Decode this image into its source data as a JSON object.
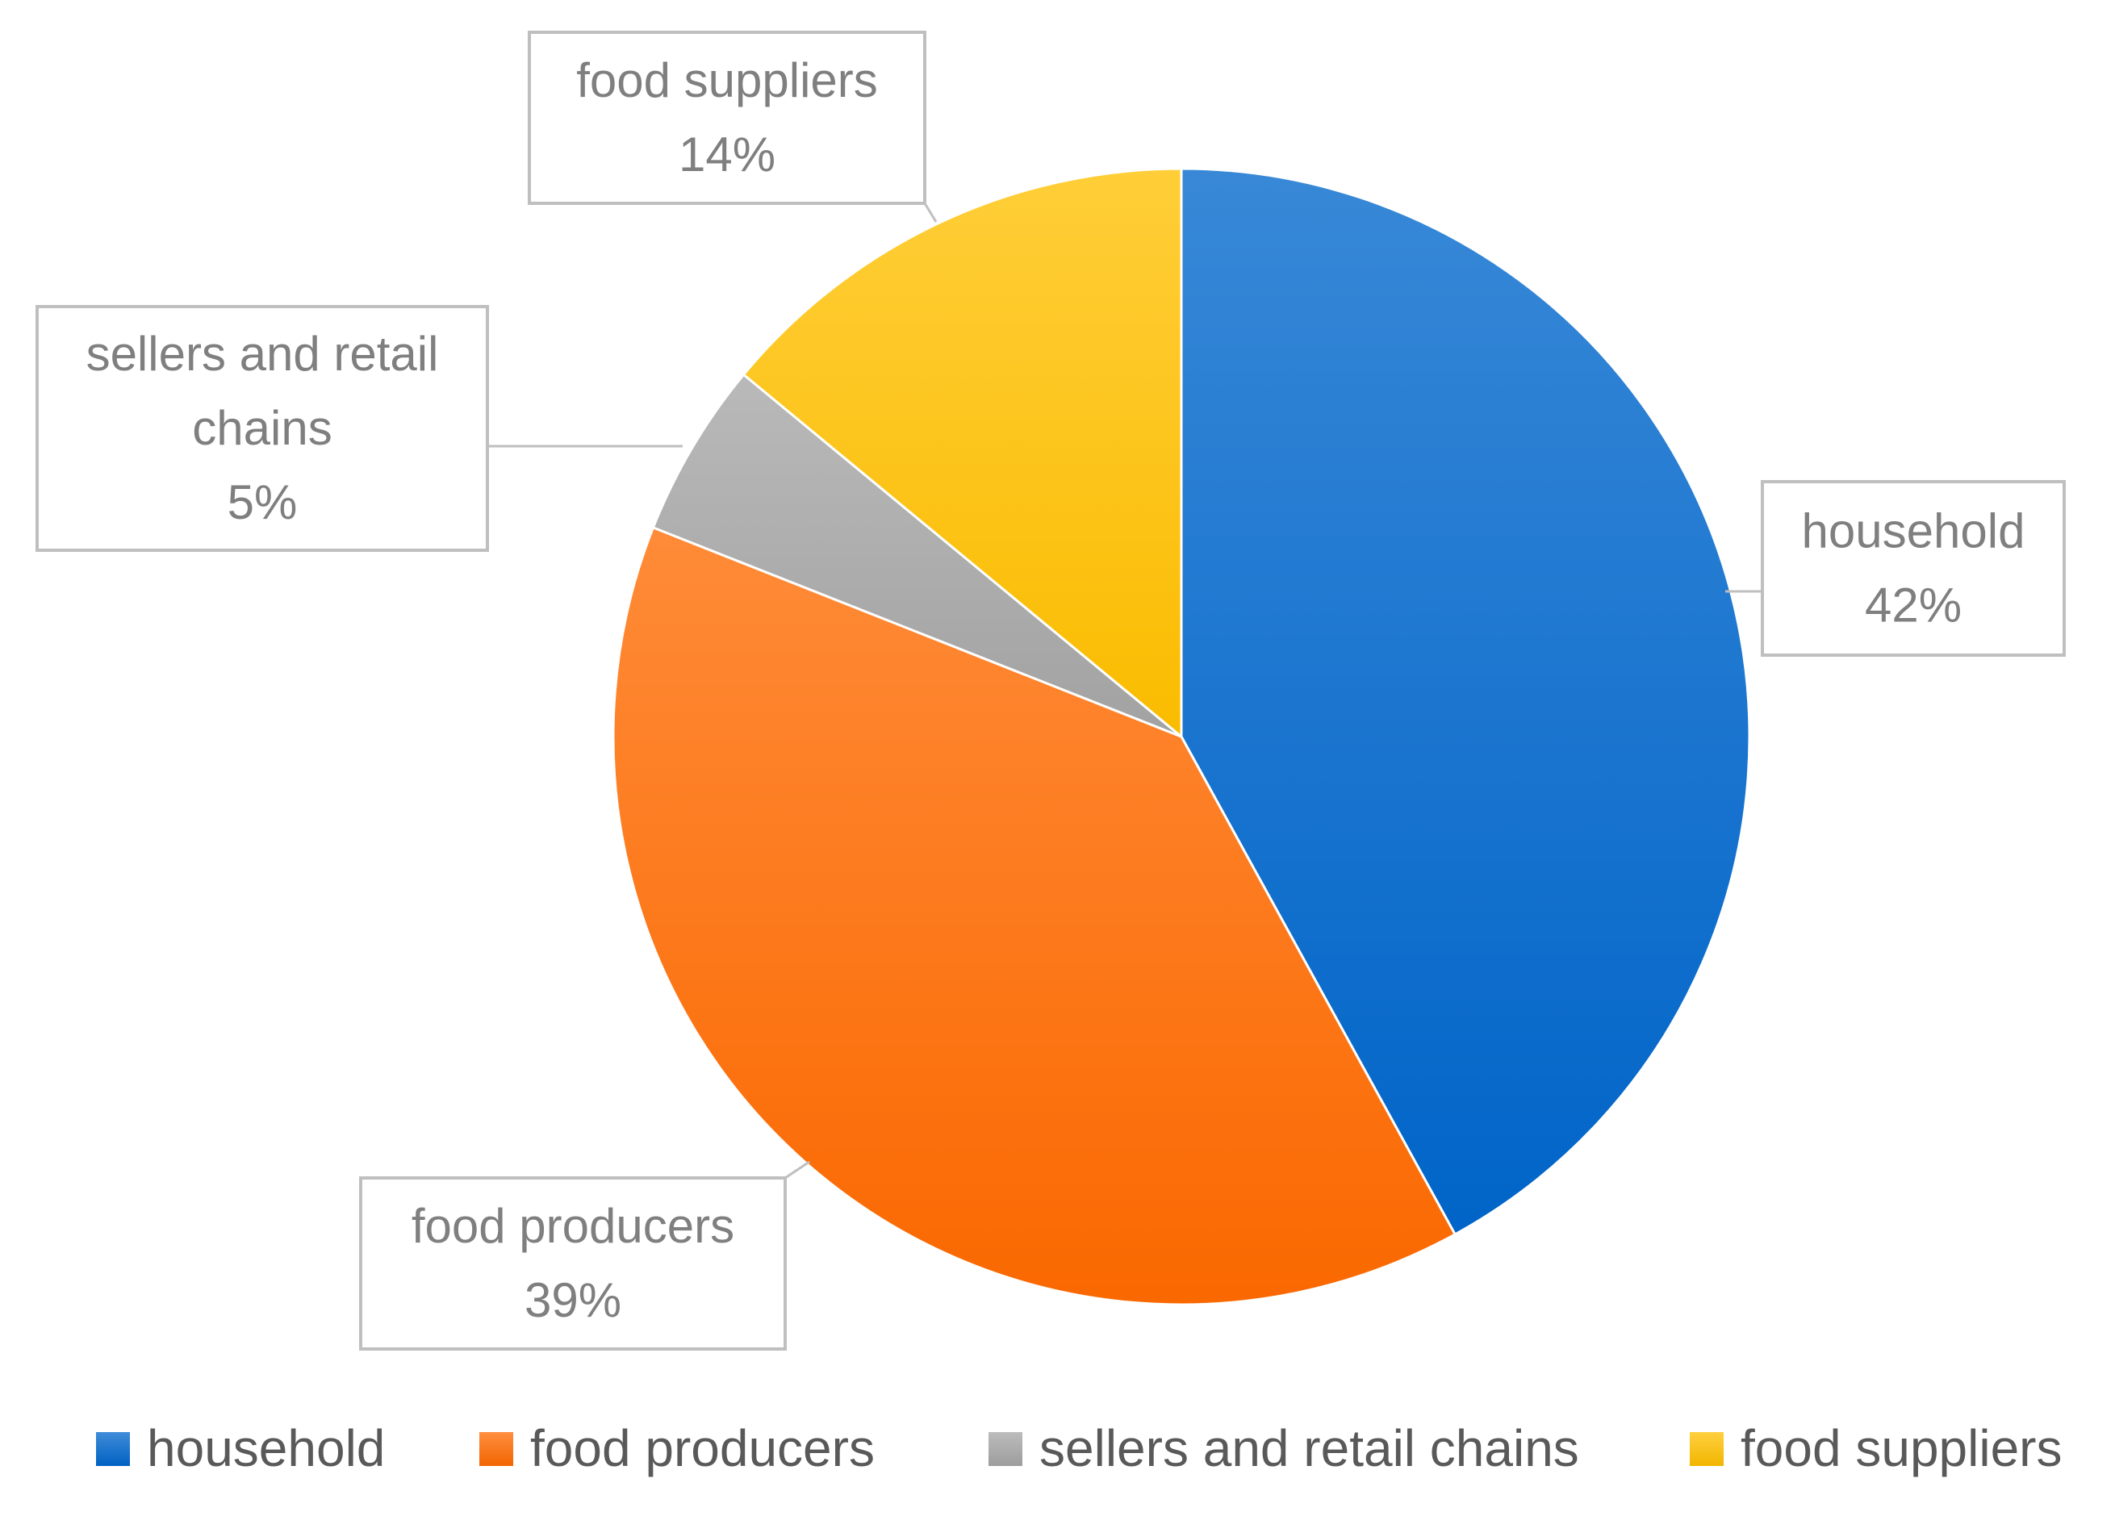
{
  "chart_data": {
    "type": "pie",
    "title": "",
    "categories": [
      "household",
      "food producers",
      "sellers and retail chains",
      "food suppliers"
    ],
    "values": [
      42,
      39,
      5,
      14
    ],
    "value_labels": [
      "42%",
      "39%",
      "5%",
      "14%"
    ],
    "colors": [
      "#0066CC",
      "#FF6A00",
      "#A5A5A5",
      "#FFC000"
    ],
    "callouts": [
      [
        "household"
      ],
      [
        "food producers"
      ],
      [
        "sellers and retail",
        "chains"
      ],
      [
        "food suppliers"
      ]
    ],
    "legend_position": "bottom",
    "start": "12 o'clock",
    "direction": "clockwise"
  }
}
